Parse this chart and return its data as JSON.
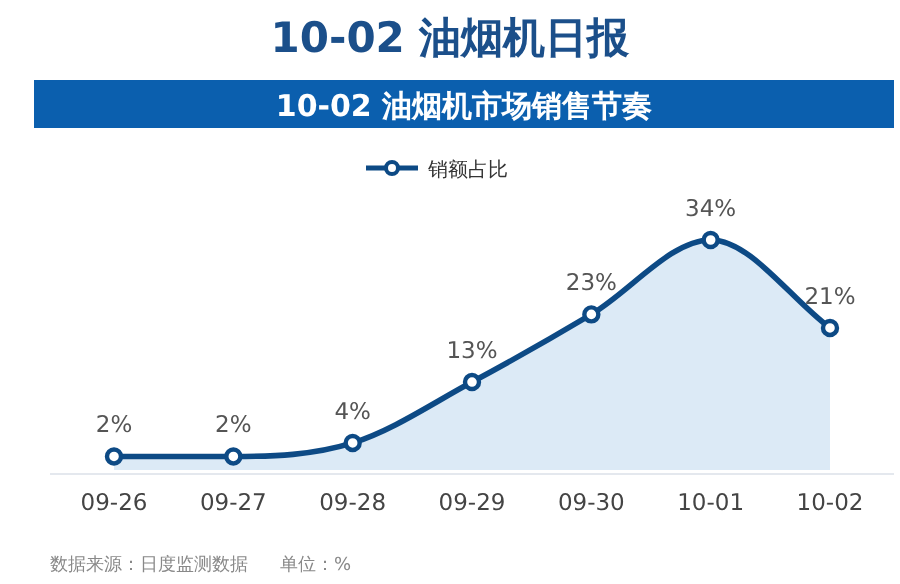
{
  "chart_data": {
    "type": "area",
    "title": "10-02  油烟机日报",
    "subtitle": "10-02 油烟机市场销售节奏",
    "categories": [
      "09-26",
      "09-27",
      "09-28",
      "09-29",
      "09-30",
      "10-01",
      "10-02"
    ],
    "series": [
      {
        "name": "销额占比",
        "color": "#0d4a85",
        "values": [
          2,
          2,
          4,
          13,
          23,
          34,
          21
        ],
        "value_labels": [
          "2%",
          "2%",
          "4%",
          "13%",
          "23%",
          "34%",
          "21%"
        ]
      }
    ],
    "marker": "circle",
    "legend": "top",
    "annotations": [
      "数据来源：日度监测数据",
      "单位：%"
    ]
  }
}
